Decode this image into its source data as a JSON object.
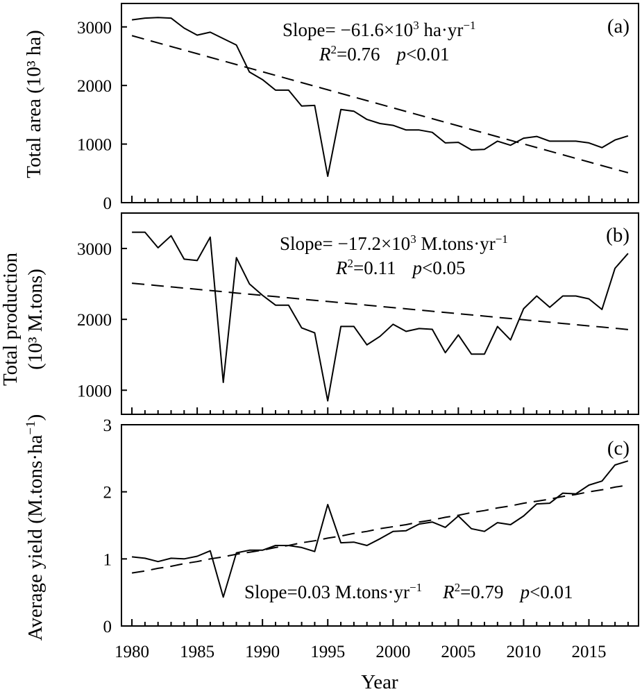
{
  "chart_data": [
    {
      "type": "line",
      "panel_label": "(a)",
      "ylabel": "Total area (10³ ha)",
      "xlabel": "",
      "xlim": [
        1979.2,
        2018.8
      ],
      "ylim": [
        0,
        3400
      ],
      "yticks": [
        0,
        1000,
        2000,
        3000
      ],
      "x": [
        1980,
        1981,
        1982,
        1983,
        1984,
        1985,
        1986,
        1987,
        1988,
        1989,
        1990,
        1991,
        1992,
        1993,
        1994,
        1995,
        1996,
        1997,
        1998,
        1999,
        2000,
        2001,
        2002,
        2003,
        2004,
        2005,
        2006,
        2007,
        2008,
        2009,
        2010,
        2011,
        2012,
        2013,
        2014,
        2015,
        2016,
        2017,
        2018
      ],
      "series": [
        {
          "kind": "observed",
          "values": [
            3120,
            3150,
            3160,
            3150,
            2980,
            2860,
            2910,
            2800,
            2690,
            2230,
            2100,
            1920,
            1920,
            1650,
            1660,
            450,
            1590,
            1560,
            1420,
            1350,
            1320,
            1240,
            1240,
            1200,
            1020,
            1030,
            900,
            910,
            1050,
            980,
            1100,
            1130,
            1050,
            1050,
            1050,
            1020,
            940,
            1070,
            1140
          ]
        },
        {
          "kind": "trend",
          "style": "dashed",
          "values": [
            2850,
            2789,
            2727,
            2666,
            2604,
            2542,
            2481,
            2419,
            2358,
            2296,
            2234,
            2173,
            2111,
            2050,
            1988,
            1926,
            1865,
            1803,
            1742,
            1680,
            1618,
            1557,
            1495,
            1434,
            1372,
            1310,
            1249,
            1187,
            1126,
            1064,
            1002,
            941,
            879,
            818,
            756,
            694,
            633,
            571,
            510
          ]
        }
      ],
      "annotations": {
        "slope_prefix": "Slope= −61.6×10",
        "slope_exp": "3",
        "slope_unit": " ha·yr",
        "slope_unit_exp": "−1",
        "r2_label": "R",
        "r2_exp": "2",
        "r2_value": "=0.76",
        "p_label": "p",
        "p_value": "<0.01"
      }
    },
    {
      "type": "line",
      "panel_label": "(b)",
      "ylabel_line1": "Total production",
      "ylabel_line2": "(10³ M.tons)",
      "xlabel": "",
      "xlim": [
        1979.2,
        2018.8
      ],
      "ylim": [
        660,
        3500
      ],
      "yticks": [
        1000,
        2000,
        3000
      ],
      "x": [
        1980,
        1981,
        1982,
        1983,
        1984,
        1985,
        1986,
        1987,
        1988,
        1989,
        1990,
        1991,
        1992,
        1993,
        1994,
        1995,
        1996,
        1997,
        1998,
        1999,
        2000,
        2001,
        2002,
        2003,
        2004,
        2005,
        2006,
        2007,
        2008,
        2009,
        2010,
        2011,
        2012,
        2013,
        2014,
        2015,
        2016,
        2017,
        2018
      ],
      "series": [
        {
          "kind": "observed",
          "values": [
            3230,
            3230,
            3010,
            3180,
            2850,
            2830,
            3160,
            1110,
            2870,
            2500,
            2340,
            2200,
            2200,
            1880,
            1810,
            850,
            1900,
            1900,
            1640,
            1760,
            1930,
            1830,
            1870,
            1860,
            1530,
            1780,
            1510,
            1510,
            1900,
            1710,
            2150,
            2330,
            2170,
            2330,
            2330,
            2290,
            2140,
            2720,
            2930
          ]
        },
        {
          "kind": "trend",
          "style": "dashed",
          "values": [
            2510,
            2493,
            2476,
            2458,
            2441,
            2424,
            2407,
            2390,
            2372,
            2355,
            2338,
            2321,
            2304,
            2286,
            2269,
            2252,
            2235,
            2218,
            2200,
            2183,
            2166,
            2149,
            2132,
            2114,
            2097,
            2080,
            2063,
            2046,
            2028,
            2011,
            1994,
            1977,
            1960,
            1942,
            1925,
            1908,
            1891,
            1874,
            1856
          ]
        }
      ],
      "annotations": {
        "slope_prefix": "Slope= −17.2×10",
        "slope_exp": "3",
        "slope_unit": " M.tons·yr",
        "slope_unit_exp": "−1",
        "r2_label": "R",
        "r2_exp": "2",
        "r2_value": "=0.11",
        "p_label": "p",
        "p_value": "<0.05"
      }
    },
    {
      "type": "line",
      "panel_label": "(c)",
      "ylabel_text": "Average yield (M.tons·ha",
      "ylabel_exp": "−1",
      "ylabel_close": ")",
      "xlabel": "Year",
      "xlim": [
        1979.2,
        2018.8
      ],
      "ylim": [
        0,
        3
      ],
      "yticks": [
        0,
        1,
        2,
        3
      ],
      "xticks": [
        1980,
        1985,
        1990,
        1995,
        2000,
        2005,
        2010,
        2015
      ],
      "x": [
        1980,
        1981,
        1982,
        1983,
        1984,
        1985,
        1986,
        1987,
        1988,
        1989,
        1990,
        1991,
        1992,
        1993,
        1994,
        1995,
        1996,
        1997,
        1998,
        1999,
        2000,
        2001,
        2002,
        2003,
        2004,
        2005,
        2006,
        2007,
        2008,
        2009,
        2010,
        2011,
        2012,
        2013,
        2014,
        2015,
        2016,
        2017,
        2018
      ],
      "series": [
        {
          "kind": "observed",
          "values": [
            1.03,
            1.01,
            0.96,
            1.01,
            1.0,
            1.04,
            1.12,
            0.43,
            1.09,
            1.13,
            1.13,
            1.2,
            1.2,
            1.17,
            1.11,
            1.81,
            1.24,
            1.25,
            1.2,
            1.3,
            1.41,
            1.42,
            1.52,
            1.55,
            1.47,
            1.64,
            1.45,
            1.41,
            1.54,
            1.51,
            1.64,
            1.82,
            1.83,
            1.98,
            1.97,
            2.1,
            2.16,
            2.4,
            2.46
          ]
        },
        {
          "kind": "trend",
          "style": "dashed",
          "values": [
            0.79,
            0.82,
            0.86,
            0.89,
            0.93,
            0.96,
            1.0,
            1.03,
            1.07,
            1.1,
            1.13,
            1.17,
            1.2,
            1.24,
            1.27,
            1.31,
            1.34,
            1.38,
            1.41,
            1.45,
            1.48,
            1.51,
            1.55,
            1.58,
            1.62,
            1.65,
            1.69,
            1.72,
            1.76,
            1.79,
            1.83,
            1.86,
            1.89,
            1.93,
            1.96,
            2.0,
            2.03,
            2.07,
            2.1
          ]
        }
      ],
      "annotations": {
        "slope_text": "Slope=0.03 M.tons·yr",
        "slope_exp": "−1",
        "r2_label": "R",
        "r2_exp": "2",
        "r2_value": "=0.79",
        "p_label": "p",
        "p_value": "<0.01"
      }
    }
  ]
}
